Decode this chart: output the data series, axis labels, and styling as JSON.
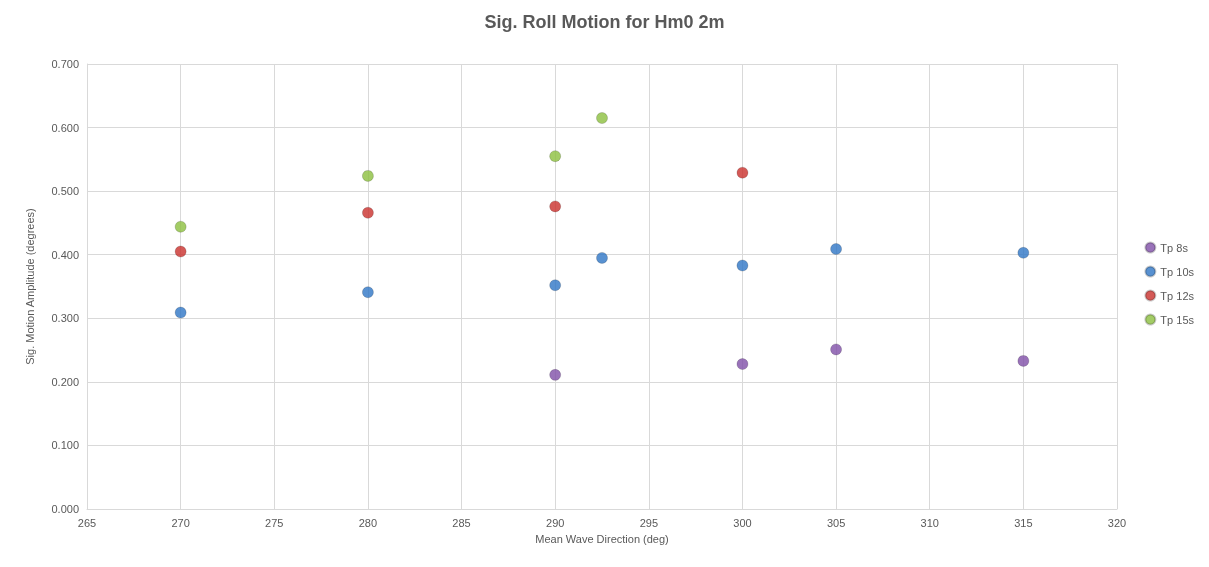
{
  "chart_data": {
    "type": "scatter",
    "title": "Sig. Roll Motion for Hm0 2m",
    "xlabel": "Mean Wave Direction (deg)",
    "ylabel": "Sig. Motion Amplitude (degrees)",
    "xlim": [
      265,
      320
    ],
    "xticks": [
      265,
      270,
      275,
      280,
      285,
      290,
      295,
      300,
      305,
      310,
      315,
      320
    ],
    "ylim": [
      0,
      0.7
    ],
    "yticks": [
      {
        "value": 0,
        "label": "0.000"
      },
      {
        "value": 0.1,
        "label": "0.100"
      },
      {
        "value": 0.2,
        "label": "0.200"
      },
      {
        "value": 0.3,
        "label": "0.300"
      },
      {
        "value": 0.4,
        "label": "0.400"
      },
      {
        "value": 0.5,
        "label": "0.500"
      },
      {
        "value": 0.6,
        "label": "0.600"
      },
      {
        "value": 0.7,
        "label": "0.700"
      }
    ],
    "grid": true,
    "legend": "right",
    "marker": "circle",
    "series": [
      {
        "name": "Tp 8s",
        "color": "#7f4fa8",
        "x": [
          290,
          300,
          305,
          315
        ],
        "values": [
          0.211,
          0.228,
          0.251,
          0.233
        ]
      },
      {
        "name": "Tp 10s",
        "color": "#2e75c6",
        "x": [
          270,
          280,
          290,
          292.5,
          300,
          305,
          315
        ],
        "values": [
          0.309,
          0.341,
          0.352,
          0.395,
          0.383,
          0.409,
          0.403
        ]
      },
      {
        "name": "Tp 12s",
        "color": "#c9302c",
        "x": [
          270,
          280,
          290,
          300
        ],
        "values": [
          0.405,
          0.466,
          0.476,
          0.529
        ]
      },
      {
        "name": "Tp 15s",
        "color": "#8cbf3f",
        "x": [
          270,
          280,
          290,
          292.5
        ],
        "values": [
          0.444,
          0.524,
          0.555,
          0.615
        ]
      }
    ]
  }
}
